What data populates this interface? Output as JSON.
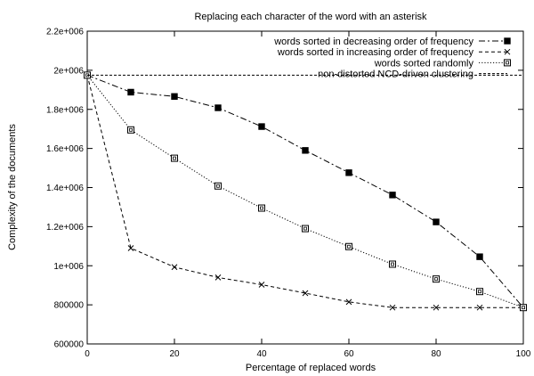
{
  "chart_data": {
    "type": "line",
    "title": "Replacing each character of the word with an asterisk",
    "xlabel": "Percentage of replaced words",
    "ylabel": "Complexity of the documents",
    "xlim": [
      0,
      100
    ],
    "ylim": [
      600000,
      2200000
    ],
    "xticks": [
      0,
      20,
      40,
      60,
      80,
      100
    ],
    "xtick_labels": [
      "0",
      "20",
      "40",
      "60",
      "80",
      "100"
    ],
    "yticks": [
      600000,
      800000,
      1000000,
      1200000,
      1400000,
      1600000,
      1800000,
      2000000,
      2200000
    ],
    "ytick_labels": [
      "600000",
      "800000",
      "1e+006",
      "1.2e+006",
      "1.4e+006",
      "1.6e+006",
      "1.8e+006",
      "2e+006",
      "2.2e+006"
    ],
    "grid": false,
    "legend_position": "top-right",
    "x": [
      0,
      10,
      20,
      30,
      40,
      50,
      60,
      70,
      80,
      90,
      100
    ],
    "series": [
      {
        "name": "words sorted in decreasing order of frequency",
        "marker": "filled-square",
        "dash": "dash-dot",
        "values": [
          1975000,
          1888000,
          1866000,
          1808000,
          1712000,
          1590000,
          1476000,
          1362000,
          1224000,
          1046000,
          786000
        ]
      },
      {
        "name": "words sorted in increasing order of frequency",
        "marker": "cross",
        "dash": "dashed",
        "values": [
          1975000,
          1090000,
          993000,
          940000,
          903000,
          860000,
          815000,
          786000,
          786000,
          786000,
          786000
        ]
      },
      {
        "name": "words sorted randomly",
        "marker": "boxed-square",
        "dash": "dotted",
        "values": [
          1975000,
          1695000,
          1550000,
          1408000,
          1295000,
          1190000,
          1098000,
          1008000,
          932000,
          868000,
          786000
        ]
      },
      {
        "name": "non-distorted NCD-driven clustering",
        "marker": "none",
        "dash": "dashed-fine",
        "constant": 1975000
      }
    ]
  }
}
